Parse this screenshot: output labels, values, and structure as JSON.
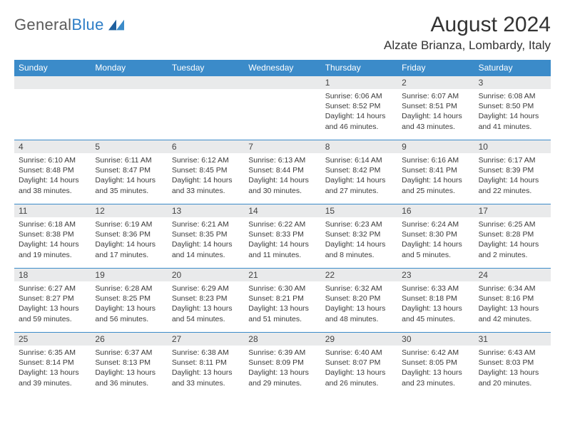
{
  "logo": {
    "text_gray": "General",
    "text_blue": "Blue"
  },
  "title": "August 2024",
  "location": "Alzate Brianza, Lombardy, Italy",
  "colors": {
    "header_bg": "#3b8bc9",
    "header_text": "#ffffff",
    "day_band_bg": "#e9eaeb",
    "body_text": "#3a3a3a",
    "rule": "#3b8bc9"
  },
  "typography": {
    "title_fontsize": 30,
    "location_fontsize": 17,
    "weekday_fontsize": 12,
    "daynum_fontsize": 12,
    "detail_fontsize": 10.5
  },
  "weekdays": [
    "Sunday",
    "Monday",
    "Tuesday",
    "Wednesday",
    "Thursday",
    "Friday",
    "Saturday"
  ],
  "weeks": [
    [
      {
        "n": "",
        "sr": "",
        "ss": "",
        "dl": ""
      },
      {
        "n": "",
        "sr": "",
        "ss": "",
        "dl": ""
      },
      {
        "n": "",
        "sr": "",
        "ss": "",
        "dl": ""
      },
      {
        "n": "",
        "sr": "",
        "ss": "",
        "dl": ""
      },
      {
        "n": "1",
        "sr": "Sunrise: 6:06 AM",
        "ss": "Sunset: 8:52 PM",
        "dl": "Daylight: 14 hours and 46 minutes."
      },
      {
        "n": "2",
        "sr": "Sunrise: 6:07 AM",
        "ss": "Sunset: 8:51 PM",
        "dl": "Daylight: 14 hours and 43 minutes."
      },
      {
        "n": "3",
        "sr": "Sunrise: 6:08 AM",
        "ss": "Sunset: 8:50 PM",
        "dl": "Daylight: 14 hours and 41 minutes."
      }
    ],
    [
      {
        "n": "4",
        "sr": "Sunrise: 6:10 AM",
        "ss": "Sunset: 8:48 PM",
        "dl": "Daylight: 14 hours and 38 minutes."
      },
      {
        "n": "5",
        "sr": "Sunrise: 6:11 AM",
        "ss": "Sunset: 8:47 PM",
        "dl": "Daylight: 14 hours and 35 minutes."
      },
      {
        "n": "6",
        "sr": "Sunrise: 6:12 AM",
        "ss": "Sunset: 8:45 PM",
        "dl": "Daylight: 14 hours and 33 minutes."
      },
      {
        "n": "7",
        "sr": "Sunrise: 6:13 AM",
        "ss": "Sunset: 8:44 PM",
        "dl": "Daylight: 14 hours and 30 minutes."
      },
      {
        "n": "8",
        "sr": "Sunrise: 6:14 AM",
        "ss": "Sunset: 8:42 PM",
        "dl": "Daylight: 14 hours and 27 minutes."
      },
      {
        "n": "9",
        "sr": "Sunrise: 6:16 AM",
        "ss": "Sunset: 8:41 PM",
        "dl": "Daylight: 14 hours and 25 minutes."
      },
      {
        "n": "10",
        "sr": "Sunrise: 6:17 AM",
        "ss": "Sunset: 8:39 PM",
        "dl": "Daylight: 14 hours and 22 minutes."
      }
    ],
    [
      {
        "n": "11",
        "sr": "Sunrise: 6:18 AM",
        "ss": "Sunset: 8:38 PM",
        "dl": "Daylight: 14 hours and 19 minutes."
      },
      {
        "n": "12",
        "sr": "Sunrise: 6:19 AM",
        "ss": "Sunset: 8:36 PM",
        "dl": "Daylight: 14 hours and 17 minutes."
      },
      {
        "n": "13",
        "sr": "Sunrise: 6:21 AM",
        "ss": "Sunset: 8:35 PM",
        "dl": "Daylight: 14 hours and 14 minutes."
      },
      {
        "n": "14",
        "sr": "Sunrise: 6:22 AM",
        "ss": "Sunset: 8:33 PM",
        "dl": "Daylight: 14 hours and 11 minutes."
      },
      {
        "n": "15",
        "sr": "Sunrise: 6:23 AM",
        "ss": "Sunset: 8:32 PM",
        "dl": "Daylight: 14 hours and 8 minutes."
      },
      {
        "n": "16",
        "sr": "Sunrise: 6:24 AM",
        "ss": "Sunset: 8:30 PM",
        "dl": "Daylight: 14 hours and 5 minutes."
      },
      {
        "n": "17",
        "sr": "Sunrise: 6:25 AM",
        "ss": "Sunset: 8:28 PM",
        "dl": "Daylight: 14 hours and 2 minutes."
      }
    ],
    [
      {
        "n": "18",
        "sr": "Sunrise: 6:27 AM",
        "ss": "Sunset: 8:27 PM",
        "dl": "Daylight: 13 hours and 59 minutes."
      },
      {
        "n": "19",
        "sr": "Sunrise: 6:28 AM",
        "ss": "Sunset: 8:25 PM",
        "dl": "Daylight: 13 hours and 56 minutes."
      },
      {
        "n": "20",
        "sr": "Sunrise: 6:29 AM",
        "ss": "Sunset: 8:23 PM",
        "dl": "Daylight: 13 hours and 54 minutes."
      },
      {
        "n": "21",
        "sr": "Sunrise: 6:30 AM",
        "ss": "Sunset: 8:21 PM",
        "dl": "Daylight: 13 hours and 51 minutes."
      },
      {
        "n": "22",
        "sr": "Sunrise: 6:32 AM",
        "ss": "Sunset: 8:20 PM",
        "dl": "Daylight: 13 hours and 48 minutes."
      },
      {
        "n": "23",
        "sr": "Sunrise: 6:33 AM",
        "ss": "Sunset: 8:18 PM",
        "dl": "Daylight: 13 hours and 45 minutes."
      },
      {
        "n": "24",
        "sr": "Sunrise: 6:34 AM",
        "ss": "Sunset: 8:16 PM",
        "dl": "Daylight: 13 hours and 42 minutes."
      }
    ],
    [
      {
        "n": "25",
        "sr": "Sunrise: 6:35 AM",
        "ss": "Sunset: 8:14 PM",
        "dl": "Daylight: 13 hours and 39 minutes."
      },
      {
        "n": "26",
        "sr": "Sunrise: 6:37 AM",
        "ss": "Sunset: 8:13 PM",
        "dl": "Daylight: 13 hours and 36 minutes."
      },
      {
        "n": "27",
        "sr": "Sunrise: 6:38 AM",
        "ss": "Sunset: 8:11 PM",
        "dl": "Daylight: 13 hours and 33 minutes."
      },
      {
        "n": "28",
        "sr": "Sunrise: 6:39 AM",
        "ss": "Sunset: 8:09 PM",
        "dl": "Daylight: 13 hours and 29 minutes."
      },
      {
        "n": "29",
        "sr": "Sunrise: 6:40 AM",
        "ss": "Sunset: 8:07 PM",
        "dl": "Daylight: 13 hours and 26 minutes."
      },
      {
        "n": "30",
        "sr": "Sunrise: 6:42 AM",
        "ss": "Sunset: 8:05 PM",
        "dl": "Daylight: 13 hours and 23 minutes."
      },
      {
        "n": "31",
        "sr": "Sunrise: 6:43 AM",
        "ss": "Sunset: 8:03 PM",
        "dl": "Daylight: 13 hours and 20 minutes."
      }
    ]
  ]
}
